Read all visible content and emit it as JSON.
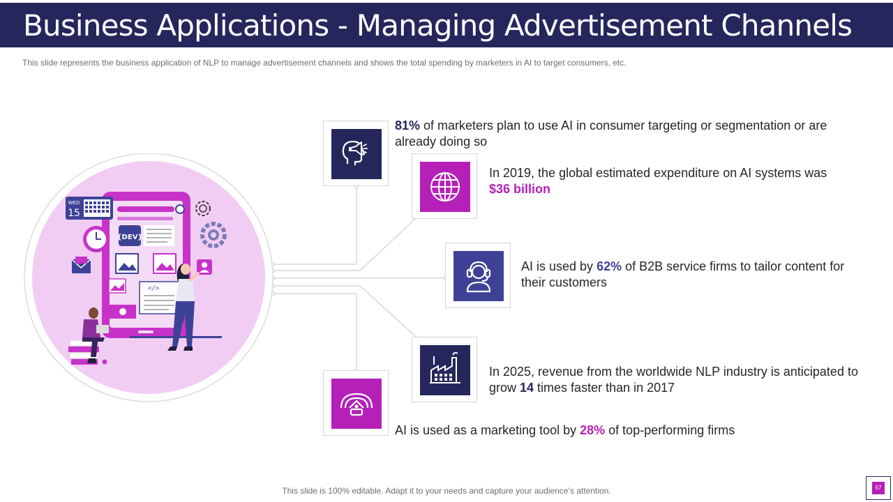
{
  "header": {
    "title": "Business Applications - Managing Advertisement Channels",
    "subtitle": "This slide represents the business application of NLP to manage advertisement  channels and shows the total spending by marketers in AI to target consumers, etc."
  },
  "illustration": {
    "calendar_day": "WED",
    "calendar_date": "15",
    "dev_tag": "{DEV}",
    "code_tag": "</>"
  },
  "stats": [
    {
      "pre": "",
      "highlight": "81%",
      "post": " of marketers plan to use AI in consumer targeting or segmentation or are already doing so",
      "icon": "megaphone-head-icon",
      "color": "#25275c"
    },
    {
      "pre": "In 2019, the global estimated expenditure on AI systems was ",
      "highlight": "$36 billion",
      "post": "",
      "icon": "globe-icon",
      "color": "#b521b8"
    },
    {
      "pre": "AI is used by ",
      "highlight": "62%",
      "post": " of B2B service firms to tailor content for their customers",
      "icon": "headset-user-icon",
      "color": "#3e4296"
    },
    {
      "pre": "In 2025, revenue from the worldwide NLP industry is anticipated to grow ",
      "highlight": "14",
      "post": " times faster than  in 2017",
      "icon": "factory-icon",
      "color": "#25275c"
    },
    {
      "pre": "AI is used as a marketing tool by ",
      "highlight": "28%",
      "post": " of top-performing firms",
      "icon": "speedometer-icon",
      "color": "#b521b8"
    }
  ],
  "footer": {
    "note": "This slide is 100% editable. Adapt it to your needs and capture your audience’s attention.",
    "page_number": "57"
  }
}
